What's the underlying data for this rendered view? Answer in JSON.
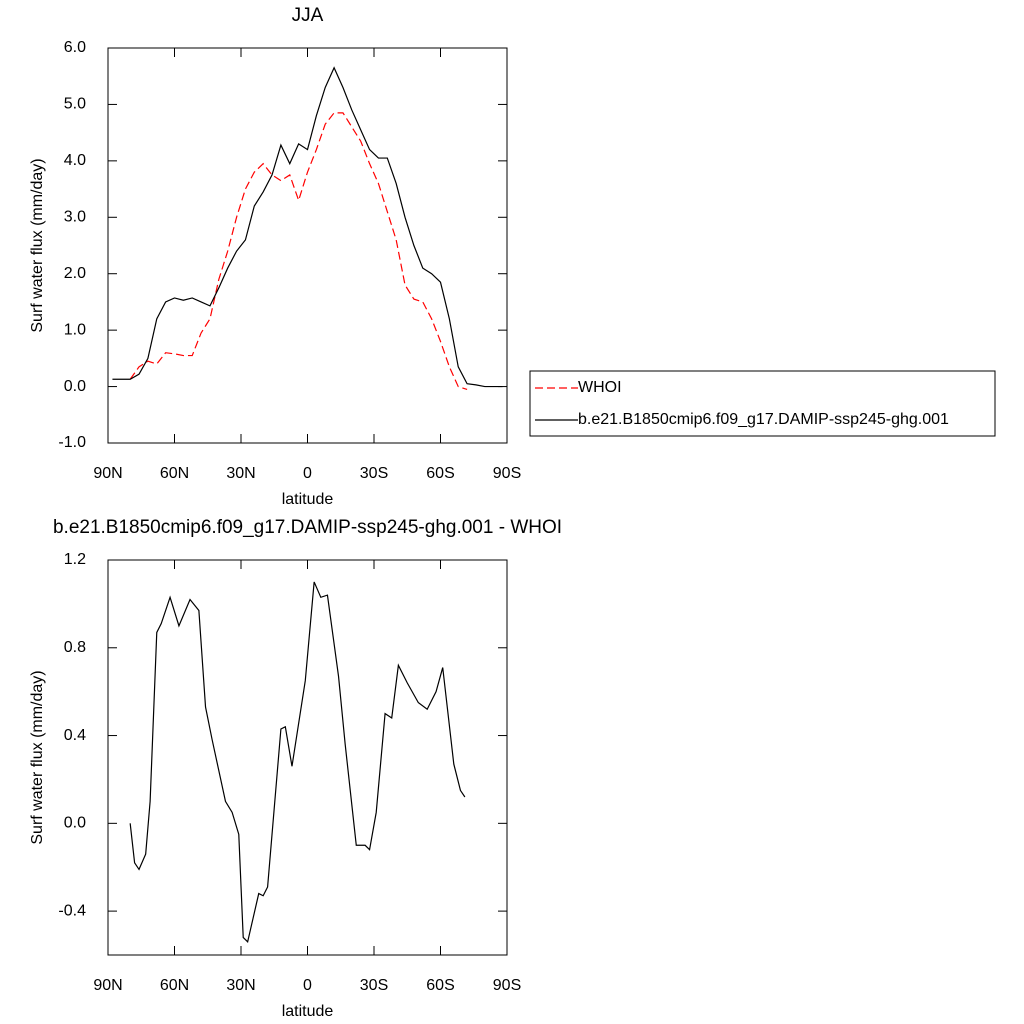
{
  "chart_data": [
    {
      "type": "line",
      "title": "JJA",
      "xlabel": "latitude",
      "ylabel": "Surf water flux (mm/day)",
      "x": [
        88,
        84,
        80,
        76,
        72,
        68,
        64,
        60,
        56,
        52,
        48,
        44,
        40,
        36,
        32,
        28,
        24,
        20,
        16,
        12,
        8,
        4,
        0,
        -4,
        -8,
        -12,
        -16,
        -20,
        -24,
        -28,
        -32,
        -36,
        -40,
        -44,
        -48,
        -52,
        -56,
        -60,
        -64,
        -68,
        -72,
        -76,
        -80,
        -84,
        -88
      ],
      "series": [
        {
          "name": "WHOI",
          "color": "#ff0000",
          "line_style": "dashed",
          "values": [
            null,
            null,
            0.13,
            0.35,
            0.45,
            0.4,
            0.6,
            0.58,
            0.55,
            0.55,
            0.95,
            1.2,
            1.9,
            2.4,
            3.0,
            3.5,
            3.8,
            3.95,
            3.75,
            3.65,
            3.75,
            3.3,
            3.8,
            4.2,
            4.65,
            4.85,
            4.85,
            4.6,
            4.35,
            3.95,
            3.6,
            3.1,
            2.6,
            1.8,
            1.55,
            1.5,
            1.2,
            0.8,
            0.35,
            0.0,
            -0.05,
            null,
            null,
            null,
            null
          ]
        },
        {
          "name": "b.e21.B1850cmip6.f09_g17.DAMIP-ssp245-ghg.001",
          "color": "#000000",
          "line_style": "solid",
          "values": [
            0.13,
            0.13,
            0.13,
            0.22,
            0.5,
            1.2,
            1.5,
            1.57,
            1.53,
            1.57,
            1.5,
            1.43,
            1.75,
            2.1,
            2.4,
            2.6,
            3.2,
            3.45,
            3.75,
            4.28,
            3.95,
            4.3,
            4.2,
            4.8,
            5.3,
            5.65,
            5.3,
            4.9,
            4.55,
            4.2,
            4.05,
            4.05,
            3.6,
            3.0,
            2.5,
            2.1,
            2.0,
            1.85,
            1.2,
            0.35,
            0.05,
            0.03,
            0.0,
            0.0,
            0.0
          ]
        }
      ],
      "xlim": [
        90,
        -90
      ],
      "xticks": [
        {
          "value": 90,
          "label": "90N"
        },
        {
          "value": 60,
          "label": "60N"
        },
        {
          "value": 30,
          "label": "30N"
        },
        0,
        {
          "value": -30,
          "label": "30S"
        },
        {
          "value": -60,
          "label": "60S"
        },
        {
          "value": -90,
          "label": "90S"
        }
      ],
      "ylim": [
        -1,
        6
      ],
      "yticks": [
        {
          "value": -1,
          "label": "-1.0"
        },
        {
          "value": 0,
          "label": "0.0"
        },
        {
          "value": 1,
          "label": "1.0"
        },
        {
          "value": 2,
          "label": "2.0"
        },
        {
          "value": 3,
          "label": "3.0"
        },
        {
          "value": 4,
          "label": "4.0"
        },
        {
          "value": 5,
          "label": "5.0"
        },
        {
          "value": 6,
          "label": "6.0"
        }
      ],
      "legend": "right"
    },
    {
      "type": "line",
      "title": "b.e21.B1850cmip6.f09_g17.DAMIP-ssp245-ghg.001 - WHOI",
      "xlabel": "latitude",
      "ylabel": "Surf water flux (mm/day)",
      "x": [
        80,
        78,
        76,
        73,
        71,
        68,
        66,
        62,
        58,
        53,
        49,
        46,
        43,
        37,
        34,
        31,
        29,
        27,
        22,
        20,
        18,
        12,
        10,
        7,
        1,
        -3,
        -6,
        -9,
        -14,
        -17,
        -22,
        -26,
        -28,
        -31,
        -35,
        -38,
        -41,
        -45,
        -50,
        -54,
        -58,
        -61,
        -66,
        -69,
        -71
      ],
      "series": [
        {
          "color": "#000000",
          "line_style": "solid",
          "values": [
            0.0,
            -0.18,
            -0.21,
            -0.14,
            0.1,
            0.87,
            0.91,
            1.03,
            0.9,
            1.02,
            0.97,
            0.53,
            0.38,
            0.1,
            0.05,
            -0.05,
            -0.52,
            -0.54,
            -0.32,
            -0.33,
            -0.29,
            0.43,
            0.44,
            0.26,
            0.65,
            1.1,
            1.03,
            1.04,
            0.67,
            0.36,
            -0.1,
            -0.1,
            -0.12,
            0.05,
            0.5,
            0.48,
            0.72,
            0.64,
            0.55,
            0.52,
            0.6,
            0.71,
            0.27,
            0.15,
            0.12
          ]
        }
      ],
      "xlim": [
        90,
        -90
      ],
      "xticks": [
        {
          "value": 90,
          "label": "90N"
        },
        {
          "value": 60,
          "label": "60N"
        },
        {
          "value": 30,
          "label": "30N"
        },
        0,
        {
          "value": -30,
          "label": "30S"
        },
        {
          "value": -60,
          "label": "60S"
        },
        {
          "value": -90,
          "label": "90S"
        }
      ],
      "ylim": [
        -0.6,
        1.2
      ],
      "yticks": [
        -0.4,
        {
          "value": 0,
          "label": "0.0"
        },
        0.4,
        0.8,
        1.2
      ]
    }
  ]
}
